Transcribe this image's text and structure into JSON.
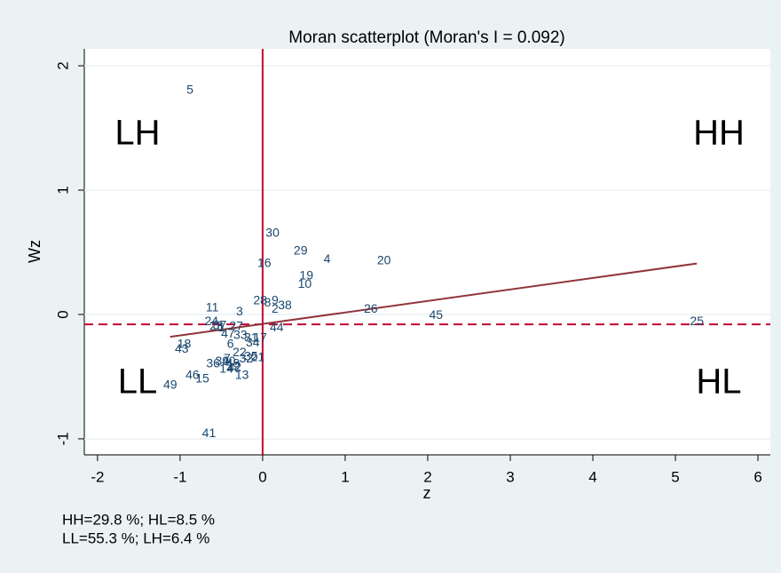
{
  "chart_data": {
    "type": "scatter",
    "title": "Moran scatterplot (Moran's I = 0.092)",
    "x_label": "z",
    "y_label": "Wz",
    "xlim": [
      -2.16,
      6.15
    ],
    "ylim": [
      -1.129,
      2.136
    ],
    "xticks": [
      -2,
      -1,
      0,
      1,
      2,
      3,
      4,
      5,
      6
    ],
    "yticks": [
      -1,
      0,
      1,
      2
    ],
    "grid": true,
    "point_labels": [
      "5",
      "30",
      "29",
      "4",
      "20",
      "16",
      "19",
      "10",
      "28",
      "9",
      "8",
      "38",
      "2",
      "11",
      "3",
      "26",
      "45",
      "25",
      "24",
      "23",
      "44",
      "18",
      "43",
      "47",
      "33",
      "31",
      "17",
      "34",
      "6",
      "22",
      "35",
      "21",
      "39",
      "7",
      "40",
      "36",
      "12",
      "14",
      "42",
      "13",
      "46",
      "15",
      "49",
      "41",
      "1",
      "27",
      "32",
      "37",
      "48"
    ],
    "x": [
      -0.88,
      0.12,
      0.46,
      0.78,
      1.47,
      0.02,
      0.53,
      0.51,
      -0.03,
      0.15,
      0.06,
      0.27,
      0.15,
      -0.61,
      -0.28,
      1.31,
      2.1,
      5.26,
      -0.62,
      -0.56,
      0.17,
      -0.95,
      -0.98,
      -0.42,
      -0.27,
      -0.14,
      -0.03,
      -0.12,
      -0.39,
      -0.28,
      -0.14,
      -0.06,
      -0.49,
      -0.43,
      -0.41,
      -0.6,
      -0.35,
      -0.44,
      -0.34,
      -0.25,
      -0.85,
      -0.73,
      -1.12,
      -0.65,
      -0.5,
      -0.32,
      -0.2,
      -0.52,
      -0.36
    ],
    "y": [
      1.8,
      0.65,
      0.51,
      0.44,
      0.43,
      0.41,
      0.31,
      0.24,
      0.11,
      0.11,
      0.09,
      0.07,
      0.04,
      0.05,
      0.02,
      0.04,
      -0.01,
      -0.06,
      -0.06,
      -0.1,
      -0.11,
      -0.24,
      -0.28,
      -0.16,
      -0.17,
      -0.19,
      -0.19,
      -0.23,
      -0.24,
      -0.31,
      -0.34,
      -0.35,
      -0.38,
      -0.36,
      -0.38,
      -0.4,
      -0.42,
      -0.44,
      -0.43,
      -0.49,
      -0.49,
      -0.52,
      -0.57,
      -0.96,
      -0.11,
      -0.1,
      -0.36,
      -0.09,
      -0.4
    ],
    "color": "#1a476f",
    "fit_line": {
      "x": [
        -1.12,
        5.26
      ],
      "y": [
        -0.18,
        0.41
      ],
      "color": "#90353b"
    },
    "hline": -0.08,
    "vline": 0,
    "ref_color": "#c10534",
    "quadrant_labels": [
      "LH",
      "HH",
      "LL",
      "HL"
    ],
    "notes": [
      "HH=29.8 %; HL=8.5 %",
      "LL=55.3 %; LH=6.4 %"
    ]
  }
}
